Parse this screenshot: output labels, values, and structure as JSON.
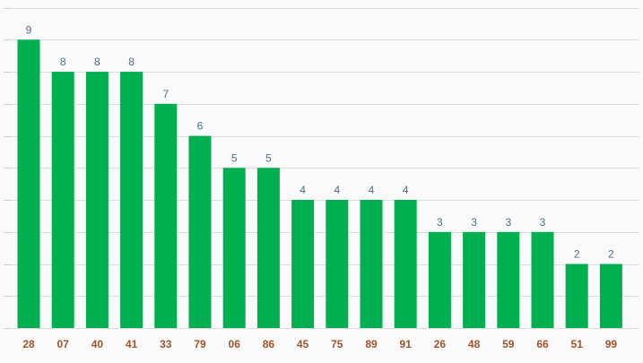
{
  "colors": {
    "bar": "#00b050",
    "value_label": "#4a6f85",
    "category_label": "#a0522d",
    "gridline": "#dcdcdc",
    "background": "#fafafa"
  },
  "chart_data": {
    "type": "bar",
    "categories": [
      "28",
      "07",
      "40",
      "41",
      "33",
      "79",
      "06",
      "86",
      "45",
      "75",
      "89",
      "91",
      "26",
      "48",
      "59",
      "66",
      "51",
      "99"
    ],
    "values": [
      9,
      8,
      8,
      8,
      7,
      6,
      5,
      5,
      4,
      4,
      4,
      4,
      3,
      3,
      3,
      3,
      2,
      2
    ],
    "title": "",
    "xlabel": "",
    "ylabel": "",
    "ylim": [
      0,
      10
    ],
    "grid": true,
    "data_labels": true
  }
}
